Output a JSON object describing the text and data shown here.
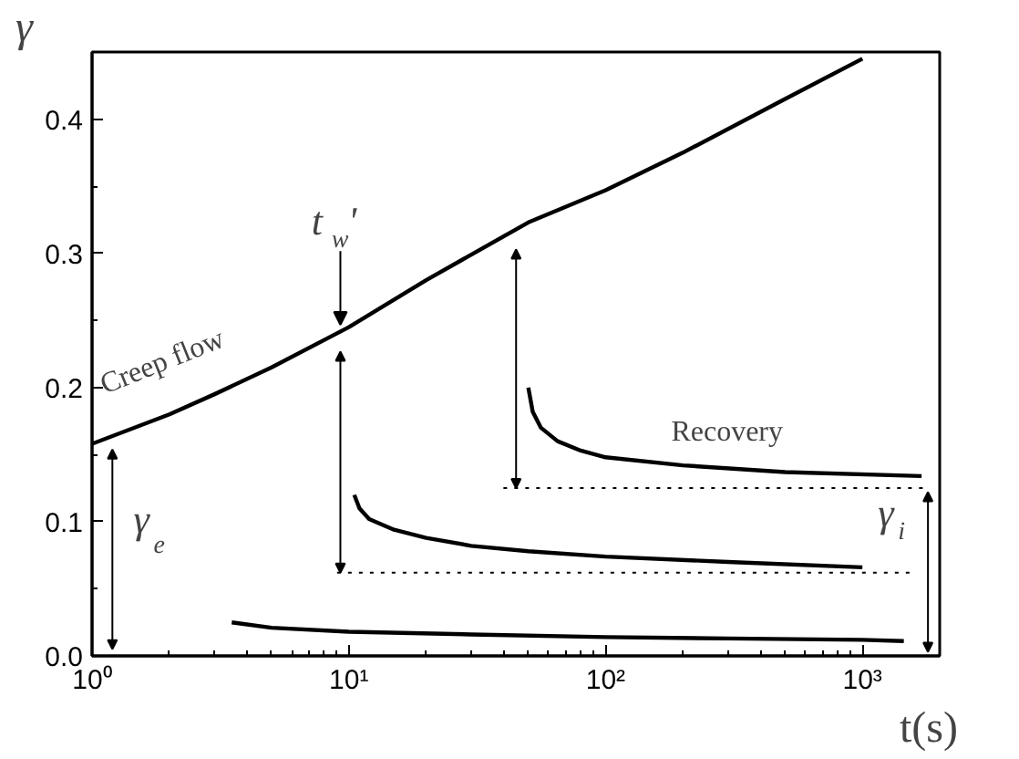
{
  "chart_data": {
    "type": "line",
    "xlabel": "t(s)",
    "ylabel": "γ",
    "log": "x",
    "grid": false,
    "xlim": [
      1,
      2000
    ],
    "xticks": [
      {
        "value": 1,
        "label": "10⁰"
      },
      {
        "value": 10,
        "label": "10¹"
      },
      {
        "value": 100,
        "label": "10²"
      },
      {
        "value": 1000,
        "label": "10³"
      }
    ],
    "ylim": [
      0,
      0.45
    ],
    "yticks": [
      {
        "value": 0,
        "label": "0.0"
      },
      {
        "value": 0.1,
        "label": "0.1"
      },
      {
        "value": 0.2,
        "label": "0.2"
      },
      {
        "value": 0.3,
        "label": "0.3"
      },
      {
        "value": 0.4,
        "label": "0.4"
      }
    ],
    "series": [
      {
        "color": "#000000",
        "x": [
          1,
          2,
          3,
          5,
          10,
          20,
          50,
          100,
          200,
          500,
          1000
        ],
        "values": [
          0.158,
          0.18,
          0.195,
          0.215,
          0.245,
          0.28,
          0.323,
          0.347,
          0.375,
          0.415,
          0.445
        ]
      },
      {
        "color": "#000000",
        "x": [
          3.5,
          5,
          10,
          30,
          100,
          300,
          1000,
          1450
        ],
        "values": [
          0.025,
          0.021,
          0.018,
          0.016,
          0.014,
          0.013,
          0.012,
          0.011
        ]
      },
      {
        "color": "#000000",
        "x": [
          10.5,
          11,
          12,
          15,
          20,
          30,
          50,
          100,
          300,
          1000
        ],
        "values": [
          0.12,
          0.11,
          0.102,
          0.094,
          0.088,
          0.082,
          0.078,
          0.074,
          0.07,
          0.066
        ]
      },
      {
        "color": "#000000",
        "x": [
          50,
          52,
          56,
          65,
          80,
          100,
          200,
          500,
          1700
        ],
        "values": [
          0.2,
          0.182,
          0.17,
          0.16,
          0.153,
          0.148,
          0.142,
          0.137,
          0.134
        ]
      },
      {
        "color": "#000000",
        "line_style": "dotted",
        "x": [
          40,
          1800
        ],
        "values": [
          0.125,
          0.125
        ]
      },
      {
        "color": "#000000",
        "line_style": "dotted",
        "x": [
          9,
          1600
        ],
        "values": [
          0.062,
          0.062
        ]
      }
    ],
    "annotations": [
      "Creep flow",
      "Recovery",
      {
        "text": "t$_{w}$'",
        "x": 9.3,
        "y": 0.242
      },
      "γ$_{e}$",
      "γ$_{i}$"
    ]
  }
}
